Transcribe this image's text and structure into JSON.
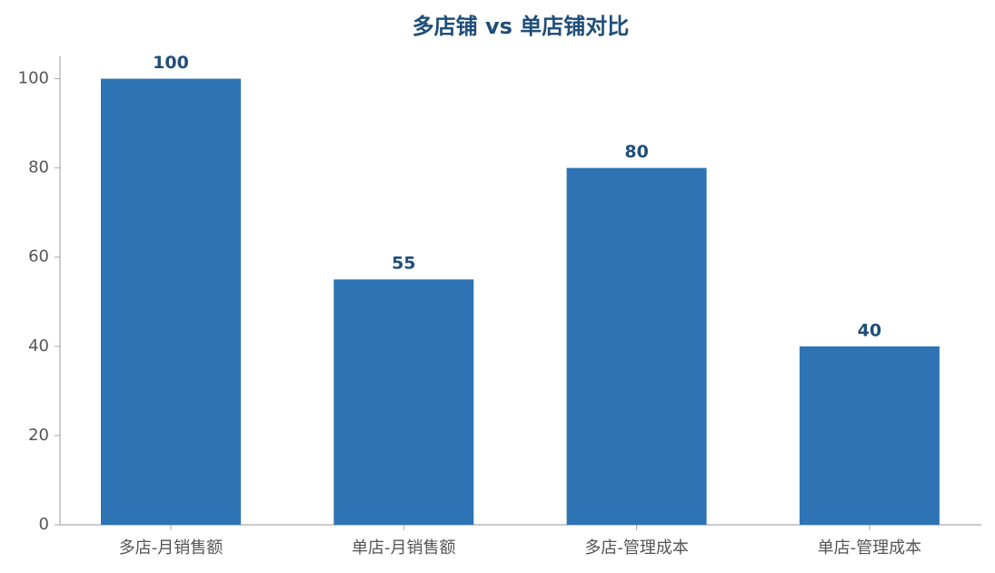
{
  "chart_data": {
    "type": "bar",
    "title": "多店铺 vs 单店铺对比",
    "categories": [
      "多店-月销售额",
      "单店-月销售额",
      "多店-管理成本",
      "单店-管理成本"
    ],
    "values": [
      100,
      55,
      80,
      40
    ],
    "color": "#2e74b5",
    "label_color": "#1f4e79",
    "ylim": [
      0,
      105
    ],
    "yticks": [
      0,
      20,
      40,
      60,
      80,
      100
    ],
    "grid": false
  }
}
